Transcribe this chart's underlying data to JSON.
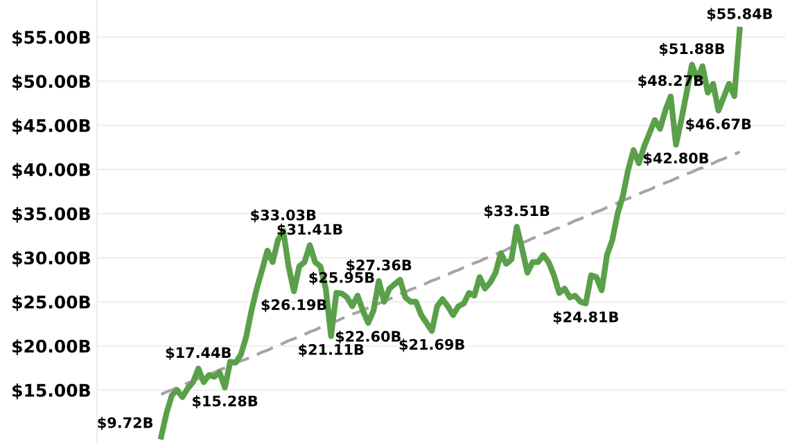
{
  "chart_data": {
    "type": "line",
    "categories": [
      null,
      null,
      null,
      null,
      null,
      null,
      null,
      null,
      null,
      null,
      null,
      null,
      null,
      null,
      null,
      null,
      null,
      null,
      null,
      null,
      null,
      null,
      null,
      null,
      null,
      null,
      null,
      null,
      null,
      null,
      null,
      null,
      null,
      null,
      null,
      null,
      null,
      null,
      null,
      null,
      null,
      null,
      null,
      null,
      null,
      null,
      null,
      null,
      null,
      null,
      null,
      null,
      null,
      null,
      null,
      null,
      null,
      null,
      null,
      null,
      null,
      null,
      null,
      null,
      null,
      null,
      null,
      null,
      null,
      null,
      null,
      null,
      null,
      null,
      null,
      null,
      null,
      null,
      null,
      null,
      null,
      null,
      null,
      null,
      null,
      null,
      null,
      null,
      null,
      null,
      null,
      null,
      null,
      null,
      null,
      null,
      null,
      null,
      null,
      null,
      null,
      null,
      null,
      null,
      null,
      null,
      null,
      null,
      null,
      null
    ],
    "ylim": [
      9,
      59.2
    ],
    "yticks": [
      {
        "value": 15,
        "label": "$15.00B"
      },
      {
        "value": 20,
        "label": "$20.00B"
      },
      {
        "value": 25,
        "label": "$25.00B"
      },
      {
        "value": 30,
        "label": "$30.00B"
      },
      {
        "value": 35,
        "label": "$35.00B"
      },
      {
        "value": 40,
        "label": "$40.00B"
      },
      {
        "value": 45,
        "label": "$45.00B"
      },
      {
        "value": 50,
        "label": "$50.00B"
      },
      {
        "value": 55,
        "label": "$55.00B"
      }
    ],
    "grid": "y",
    "series": [
      {
        "color": "#5aa04a",
        "line_style": "solid",
        "values": [
          9.72,
          12.4,
          14.4,
          15.0,
          14.2,
          15.2,
          15.9,
          17.44,
          15.9,
          16.7,
          16.5,
          17.0,
          15.28,
          18.2,
          18.1,
          19.0,
          21.0,
          24.0,
          26.5,
          28.6,
          30.8,
          29.5,
          32.0,
          33.03,
          29.0,
          26.19,
          29.0,
          29.5,
          31.41,
          29.5,
          29.0,
          26.5,
          21.11,
          26.0,
          25.95,
          25.5,
          24.5,
          25.7,
          24.0,
          22.6,
          24.0,
          27.36,
          25.0,
          26.5,
          27.0,
          27.5,
          25.5,
          25.0,
          25.0,
          23.5,
          22.6,
          21.69,
          24.5,
          25.3,
          24.5,
          23.5,
          24.5,
          24.8,
          26.0,
          25.7,
          27.8,
          26.5,
          27.2,
          28.3,
          30.5,
          29.3,
          29.8,
          33.51,
          31.0,
          28.3,
          29.5,
          29.5,
          30.3,
          29.5,
          28.0,
          26.0,
          26.5,
          25.5,
          25.7,
          25.0,
          24.81,
          28.0,
          27.8,
          26.3,
          30.3,
          32.0,
          35.0,
          37.0,
          40.0,
          42.2,
          40.7,
          42.6,
          44.1,
          45.6,
          44.6,
          46.7,
          48.27,
          42.8,
          45.6,
          48.7,
          51.88,
          50.2,
          51.7,
          48.7,
          49.7,
          46.67,
          48.2,
          49.7,
          48.3,
          55.84
        ],
        "value_labels": [
          "$9.72B",
          null,
          null,
          null,
          null,
          null,
          null,
          "$17.44B",
          null,
          null,
          null,
          null,
          "$15.28B",
          null,
          null,
          null,
          null,
          null,
          null,
          null,
          null,
          null,
          null,
          "$33.03B",
          null,
          "$26.19B",
          null,
          null,
          "$31.41B",
          null,
          null,
          null,
          "$21.11B",
          null,
          "$25.95B",
          null,
          null,
          null,
          null,
          "$22.60B",
          null,
          "$27.36B",
          null,
          null,
          null,
          null,
          null,
          null,
          null,
          null,
          null,
          "$21.69B",
          null,
          null,
          null,
          null,
          null,
          null,
          null,
          null,
          null,
          null,
          null,
          null,
          null,
          null,
          null,
          "$33.51B",
          null,
          null,
          null,
          null,
          null,
          null,
          null,
          null,
          null,
          null,
          null,
          null,
          "$24.81B",
          null,
          null,
          null,
          null,
          null,
          null,
          null,
          null,
          null,
          null,
          null,
          null,
          null,
          null,
          null,
          "$48.27B",
          "$42.80B",
          null,
          null,
          "$51.88B",
          null,
          null,
          null,
          null,
          "$46.67B",
          null,
          null,
          null,
          "$55.84B"
        ]
      },
      {
        "color": "#a8a2a8",
        "line_style": "dashed",
        "values": [
          14.5,
          14.8,
          15.0,
          15.3,
          15.5,
          15.8,
          16.0,
          16.3,
          16.5,
          16.8,
          17.0,
          17.3,
          17.5,
          17.8,
          18.0,
          18.3,
          18.5,
          18.8,
          19.0,
          19.3,
          19.5,
          19.8,
          20.1,
          20.3,
          20.6,
          20.8,
          21.1,
          21.3,
          21.6,
          21.8,
          22.1,
          22.3,
          22.6,
          22.8,
          23.1,
          23.3,
          23.6,
          23.8,
          24.1,
          24.3,
          24.6,
          24.8,
          25.1,
          25.3,
          25.6,
          25.9,
          26.1,
          26.4,
          26.6,
          26.9,
          27.1,
          27.4,
          27.6,
          27.9,
          28.1,
          28.4,
          28.6,
          28.9,
          29.1,
          29.4,
          29.6,
          29.9,
          30.1,
          30.4,
          30.6,
          30.9,
          31.2,
          31.4,
          31.7,
          31.9,
          32.2,
          32.4,
          32.7,
          32.9,
          33.2,
          33.4,
          33.7,
          33.9,
          34.2,
          34.4,
          34.7,
          34.9,
          35.2,
          35.4,
          35.7,
          35.9,
          36.2,
          36.5,
          36.7,
          37.0,
          37.2,
          37.5,
          37.7,
          38.0,
          38.2,
          38.5,
          38.7,
          39.0,
          39.2,
          39.5,
          39.7,
          40.0,
          40.2,
          40.5,
          40.7,
          41.0,
          41.2,
          41.5,
          41.7,
          42.0
        ]
      }
    ]
  }
}
